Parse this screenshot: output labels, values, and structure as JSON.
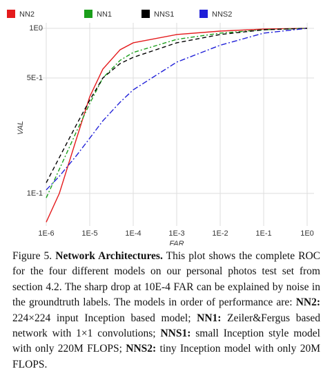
{
  "chart_data": {
    "type": "line",
    "x_label": "FAR",
    "y_label": "VAL",
    "xscale": "log",
    "yscale": "log",
    "grid": true,
    "legend": "top",
    "xlim": [
      7.2e-07,
      1.44
    ],
    "ylim": [
      0.0635,
      1.08
    ],
    "xticks": [
      {
        "value": 1e-06,
        "label": "1E-6"
      },
      {
        "value": 1e-05,
        "label": "1E-5"
      },
      {
        "value": 0.0001,
        "label": "1E-4"
      },
      {
        "value": 0.001,
        "label": "1E-3"
      },
      {
        "value": 0.01,
        "label": "1E-2"
      },
      {
        "value": 0.1,
        "label": "1E-1"
      },
      {
        "value": 1,
        "label": "1E0"
      }
    ],
    "yticks": [
      {
        "value": 0.1,
        "label": "1E-1"
      },
      {
        "value": 0.5,
        "label": "5E-1"
      },
      {
        "value": 1,
        "label": "1E0"
      }
    ],
    "x": [
      1e-06,
      2e-06,
      5e-06,
      1e-05,
      2e-05,
      5e-05,
      0.0001,
      0.001,
      0.01,
      0.1,
      1
    ],
    "series": [
      {
        "name": "NN2",
        "color": "#e41a1c",
        "dash": "none",
        "values": [
          0.067,
          0.1,
          0.216,
          0.385,
          0.566,
          0.742,
          0.817,
          0.917,
          0.962,
          0.99,
          1
        ]
      },
      {
        "name": "NN1",
        "color": "#1a9e1a",
        "dash": "6,3,2,3",
        "values": [
          0.094,
          0.14,
          0.238,
          0.35,
          0.5,
          0.64,
          0.714,
          0.857,
          0.935,
          0.98,
          1
        ]
      },
      {
        "name": "NNS1",
        "color": "#000000",
        "dash": "6,4",
        "values": [
          0.116,
          0.165,
          0.262,
          0.367,
          0.5,
          0.612,
          0.667,
          0.817,
          0.917,
          0.98,
          1
        ]
      },
      {
        "name": "NNS2",
        "color": "#1f1fd8",
        "dash": "8,3,2,3",
        "values": [
          0.105,
          0.127,
          0.17,
          0.216,
          0.275,
          0.357,
          0.424,
          0.624,
          0.79,
          0.935,
          1
        ]
      }
    ]
  },
  "caption": {
    "label": "Figure 5.",
    "title": "Network Architectures.",
    "parts": [
      {
        "text": " This plot shows the complete ROC for the four different models on our personal photos test set from section 4.2. The sharp drop at 10E-4 FAR can be explained by noise in the groundtruth labels. The models in order of performance are: ",
        "bold": false
      },
      {
        "text": "NN2:",
        "bold": true
      },
      {
        "text": " 224×224 input Inception based model; ",
        "bold": false
      },
      {
        "text": "NN1:",
        "bold": true
      },
      {
        "text": " Zeiler&Fergus based network with 1×1 convolutions; ",
        "bold": false
      },
      {
        "text": "NNS1:",
        "bold": true
      },
      {
        "text": " small Inception style model with only 220M FLOPS; ",
        "bold": false
      },
      {
        "text": "NNS2:",
        "bold": true
      },
      {
        "text": " tiny Inception model with only 20M FLOPS.",
        "bold": false
      }
    ]
  }
}
